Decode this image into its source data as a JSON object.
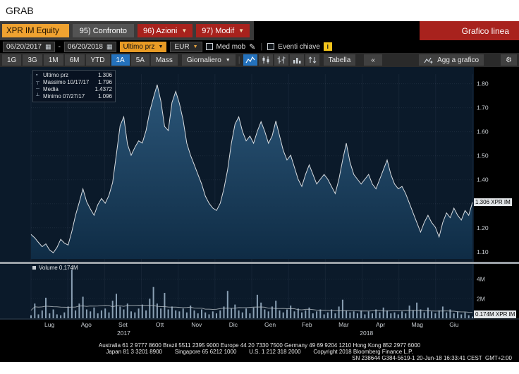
{
  "window": {
    "title": "GRAB"
  },
  "toolbar1": {
    "ticker": "XPR IM Equity",
    "confronto": "95) Confronto",
    "azioni": "96) Azioni",
    "modif": "97) Modif",
    "chart_title": "Grafico linea"
  },
  "toolbar2": {
    "date_from": "06/20/2017",
    "date_sep": "-",
    "date_to": "06/20/2018",
    "price_field": "Ultimo prz",
    "currency": "EUR",
    "med_mob_label": "Med mob",
    "eventi_label": "Eventi chiave",
    "info_glyph": "i",
    "pencil_glyph": "✎",
    "calendar_glyph": "▦"
  },
  "toolbar3": {
    "periods": [
      "1G",
      "3G",
      "1M",
      "6M",
      "YTD",
      "1A",
      "5A",
      "Mass"
    ],
    "selected_period": "1A",
    "frequency": "Giornaliero",
    "tabella": "Tabella",
    "collapse": "«",
    "agg": "Agg a grafico",
    "gear_glyph": "⚙"
  },
  "legend": {
    "items": [
      {
        "marker": "▪",
        "label": "Ultimo prz",
        "value": "1.306"
      },
      {
        "marker": "┬",
        "label": "Massimo 10/17/17",
        "value": "1.796"
      },
      {
        "marker": "─",
        "label": "Media",
        "value": "1.4372"
      },
      {
        "marker": "┴",
        "label": "Minimo 07/27/17",
        "value": "1.096"
      }
    ]
  },
  "volume_legend": "Volume 0,174M",
  "price_tag": "1.306 XPR IM",
  "volume_tag": "0.174M XPR IM",
  "chart_data": {
    "type": "area",
    "title": "XPR IM Equity — Grafico linea (1A, Giornaliero)",
    "x_axis_months": [
      "Lug",
      "Ago",
      "Set",
      "Ott",
      "Nov",
      "Dic",
      "Gen",
      "Feb",
      "Mar",
      "Apr",
      "Mag",
      "Giu"
    ],
    "years": [
      "2017",
      "2018"
    ],
    "y_ticks": [
      1.1,
      1.2,
      1.3,
      1.4,
      1.5,
      1.6,
      1.7,
      1.8
    ],
    "ylim": [
      1.07,
      1.84
    ],
    "volume_ticks": [
      {
        "label": "2M",
        "value": 2
      },
      {
        "label": "4M",
        "value": 4
      }
    ],
    "volume_max": 5.2,
    "last_price": 1.306,
    "high": {
      "date": "10/17/17",
      "value": 1.796
    },
    "mean": 1.4372,
    "low": {
      "date": "07/27/17",
      "value": 1.096
    },
    "last_volume": 0.174,
    "prices": [
      1.172,
      1.158,
      1.139,
      1.121,
      1.133,
      1.108,
      1.096,
      1.118,
      1.152,
      1.136,
      1.128,
      1.185,
      1.252,
      1.306,
      1.362,
      1.308,
      1.278,
      1.252,
      1.296,
      1.322,
      1.302,
      1.335,
      1.388,
      1.505,
      1.625,
      1.662,
      1.548,
      1.502,
      1.535,
      1.562,
      1.553,
      1.605,
      1.684,
      1.742,
      1.796,
      1.728,
      1.622,
      1.605,
      1.722,
      1.768,
      1.718,
      1.648,
      1.552,
      1.502,
      1.462,
      1.422,
      1.382,
      1.332,
      1.302,
      1.282,
      1.272,
      1.302,
      1.362,
      1.442,
      1.552,
      1.632,
      1.662,
      1.602,
      1.562,
      1.582,
      1.552,
      1.602,
      1.642,
      1.602,
      1.552,
      1.582,
      1.645,
      1.582,
      1.522,
      1.482,
      1.502,
      1.452,
      1.402,
      1.372,
      1.422,
      1.462,
      1.422,
      1.382,
      1.402,
      1.422,
      1.402,
      1.372,
      1.342,
      1.402,
      1.482,
      1.552,
      1.472,
      1.422,
      1.402,
      1.382,
      1.402,
      1.422,
      1.382,
      1.362,
      1.402,
      1.442,
      1.482,
      1.422,
      1.382,
      1.362,
      1.372,
      1.342,
      1.302,
      1.262,
      1.222,
      1.182,
      1.222,
      1.252,
      1.222,
      1.202,
      1.162,
      1.222,
      1.262,
      1.242,
      1.282,
      1.252,
      1.232,
      1.272,
      1.252,
      1.306
    ],
    "volumes": [
      0.3,
      1.5,
      0.4,
      0.8,
      2.1,
      0.5,
      0.9,
      0.4,
      0.3,
      0.6,
      1.2,
      5.0,
      0.8,
      1.5,
      2.2,
      0.9,
      0.7,
      1.1,
      0.5,
      0.8,
      1.0,
      0.6,
      1.8,
      2.5,
      1.2,
      0.9,
      1.5,
      0.7,
      0.6,
      1.0,
      1.4,
      0.8,
      2.0,
      3.2,
      1.5,
      1.0,
      2.6,
      0.9,
      1.2,
      0.8,
      0.7,
      1.0,
      0.6,
      1.3,
      0.8,
      0.5,
      0.9,
      0.6,
      0.4,
      0.7,
      0.5,
      0.8,
      1.2,
      2.8,
      1.0,
      1.4,
      0.8,
      0.6,
      1.0,
      0.5,
      1.1,
      2.4,
      1.6,
      0.9,
      0.7,
      1.2,
      1.8,
      0.8,
      0.6,
      0.9,
      1.3,
      0.7,
      1.0,
      0.6,
      0.8,
      1.1,
      0.5,
      0.7,
      0.9,
      0.4,
      0.6,
      0.9,
      0.5,
      1.2,
      1.9,
      0.8,
      0.6,
      0.7,
      0.5,
      0.8,
      0.4,
      0.7,
      0.5,
      0.9,
      0.6,
      1.1,
      0.8,
      0.5,
      0.6,
      0.4,
      0.7,
      0.5,
      1.3,
      0.8,
      1.6,
      0.9,
      0.6,
      1.1,
      0.7,
      0.5,
      0.8,
      1.2,
      0.6,
      0.9,
      0.5,
      0.7,
      0.4,
      0.6,
      0.3,
      0.174
    ]
  },
  "footer": {
    "line1": "Australia 61 2 9777 8600 Brazil 5511 2395 9000 Europe 44 20 7330 7500 Germany 49 69 9204 1210 Hong Kong 852 2977 6000",
    "line2": "Japan 81 3 3201 8900        Singapore 65 6212 1000        U.S. 1 212 318 2000        Copyright 2018 Bloomberg Finance L.P.",
    "line3": "SN 238644 G384-5619-1 20-Jun-18 16:33:41 CEST  GMT+2:00"
  }
}
